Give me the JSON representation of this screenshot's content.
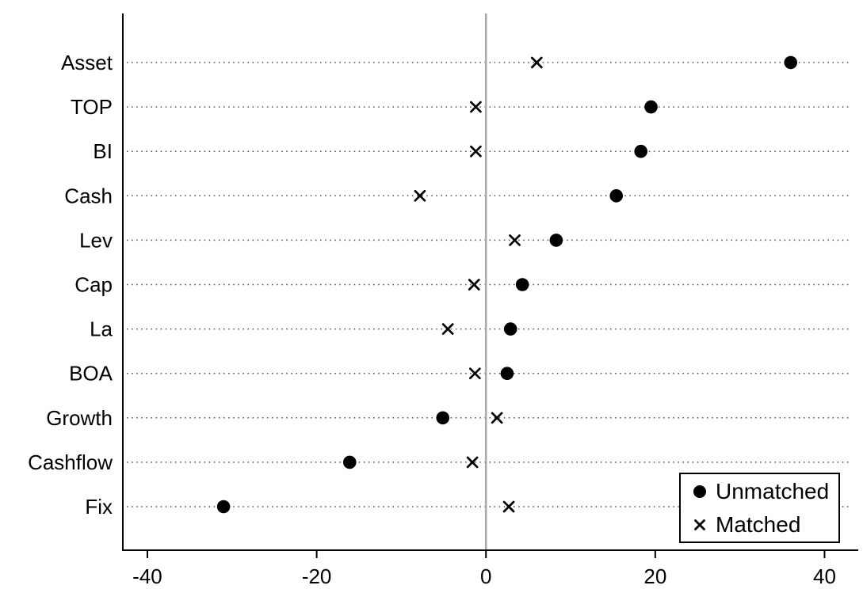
{
  "chart_data": {
    "type": "scatter",
    "title": "",
    "xlabel": "",
    "ylabel": "",
    "categories": [
      "Asset",
      "TOP",
      "BI",
      "Cash",
      "Lev",
      "Cap",
      "La",
      "BOA",
      "Growth",
      "Cashflow",
      "Fix"
    ],
    "series": [
      {
        "name": "Unmatched",
        "marker": "circle",
        "values": [
          36.0,
          19.5,
          18.3,
          15.4,
          8.3,
          4.3,
          2.9,
          2.5,
          -5.1,
          -16.1,
          -31.0
        ]
      },
      {
        "name": "Matched",
        "marker": "x",
        "values": [
          6.0,
          -1.2,
          -1.2,
          -7.8,
          3.4,
          -1.4,
          -4.5,
          -1.3,
          1.3,
          -1.6,
          2.7
        ]
      }
    ],
    "x_ticks": [
      -40,
      -20,
      0,
      20,
      40
    ],
    "xlim": [
      -42.9,
      43.7
    ],
    "grid": "dotted-horizontal",
    "zero_line": true,
    "legend_position": "bottom-right",
    "colors": {
      "marker": "#000000",
      "zero_line": "#a9a9a9",
      "grid_dots": "#4a4a4a",
      "axis": "#000000",
      "background": "#ffffff",
      "legend_border": "#000000"
    }
  }
}
